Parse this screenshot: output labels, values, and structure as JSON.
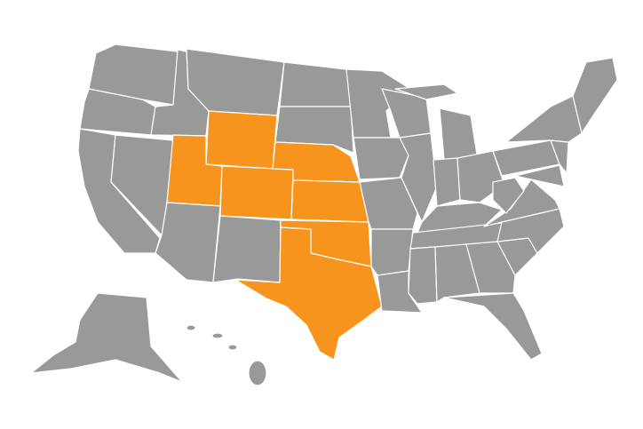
{
  "map": {
    "colors": {
      "default_fill": "#999999",
      "highlight_fill": "#F7941D",
      "border": "#FFFFFF",
      "background": "#FFFFFF"
    },
    "highlighted_states": [
      "UT",
      "WY",
      "CO",
      "NE",
      "KS",
      "OK",
      "TX"
    ]
  }
}
